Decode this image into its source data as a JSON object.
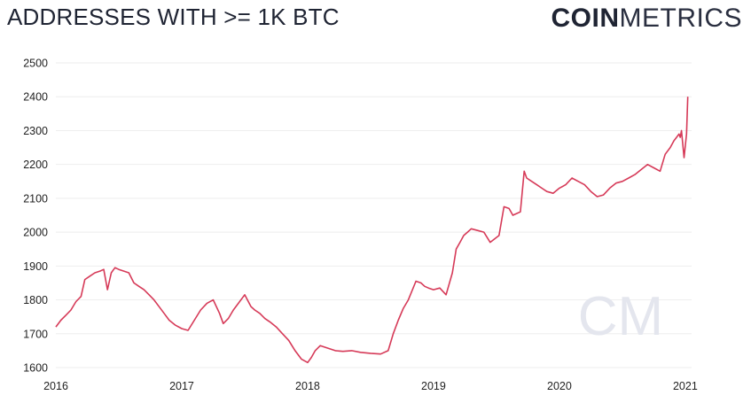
{
  "header": {
    "title": "ADDRESSES WITH >= 1K BTC",
    "logo_bold": "COIN",
    "logo_light": "METRICS"
  },
  "watermark": {
    "text": "CM"
  },
  "colors": {
    "line": "#d63a58",
    "grid": "#eeeeee",
    "watermark": "#e4e6ee"
  },
  "chart_data": {
    "type": "line",
    "title": "ADDRESSES WITH >= 1K BTC",
    "xlabel": "",
    "ylabel": "",
    "xlim": [
      2016.0,
      2021.05
    ],
    "ylim": [
      1600,
      2500
    ],
    "x_ticks": [
      "2016",
      "2017",
      "2018",
      "2019",
      "2020",
      "2021"
    ],
    "y_ticks": [
      1600,
      1700,
      1800,
      1900,
      2000,
      2100,
      2200,
      2300,
      2400,
      2500
    ],
    "grid": true,
    "legend": "none",
    "series": [
      {
        "x": [
          2016.0,
          2016.04,
          2016.08,
          2016.12,
          2016.16,
          2016.2,
          2016.23,
          2016.27,
          2016.31,
          2016.35,
          2016.38,
          2016.41,
          2016.44,
          2016.47,
          2016.5,
          2016.54,
          2016.58,
          2016.62,
          2016.66,
          2016.7,
          2016.74,
          2016.78,
          2016.82,
          2016.86,
          2016.9,
          2016.95,
          2017.0,
          2017.05,
          2017.1,
          2017.15,
          2017.2,
          2017.25,
          2017.3,
          2017.33,
          2017.37,
          2017.41,
          2017.45,
          2017.5,
          2017.55,
          2017.58,
          2017.62,
          2017.66,
          2017.7,
          2017.75,
          2017.8,
          2017.85,
          2017.9,
          2017.95,
          2018.0,
          2018.03,
          2018.06,
          2018.1,
          2018.14,
          2018.18,
          2018.22,
          2018.28,
          2018.35,
          2018.42,
          2018.5,
          2018.58,
          2018.64,
          2018.68,
          2018.72,
          2018.76,
          2018.8,
          2018.86,
          2018.9,
          2018.93,
          2018.96,
          2019.0,
          2019.05,
          2019.1,
          2019.15,
          2019.18,
          2019.21,
          2019.24,
          2019.27,
          2019.3,
          2019.35,
          2019.4,
          2019.45,
          2019.52,
          2019.56,
          2019.6,
          2019.63,
          2019.66,
          2019.69,
          2019.72,
          2019.74,
          2019.78,
          2019.82,
          2019.86,
          2019.9,
          2019.95,
          2020.0,
          2020.05,
          2020.1,
          2020.15,
          2020.2,
          2020.25,
          2020.3,
          2020.35,
          2020.4,
          2020.45,
          2020.5,
          2020.55,
          2020.6,
          2020.65,
          2020.7,
          2020.75,
          2020.8,
          2020.84,
          2020.88,
          2020.91,
          2020.93,
          2020.95,
          2020.96,
          2020.97,
          2020.99,
          2021.01,
          2021.02
        ],
        "values": [
          1720,
          1740,
          1755,
          1770,
          1795,
          1810,
          1860,
          1870,
          1880,
          1885,
          1890,
          1830,
          1880,
          1895,
          1890,
          1885,
          1880,
          1850,
          1840,
          1830,
          1815,
          1800,
          1780,
          1760,
          1740,
          1725,
          1715,
          1710,
          1740,
          1770,
          1790,
          1800,
          1760,
          1730,
          1745,
          1770,
          1790,
          1815,
          1780,
          1770,
          1760,
          1745,
          1735,
          1720,
          1700,
          1680,
          1650,
          1625,
          1615,
          1630,
          1650,
          1665,
          1660,
          1655,
          1650,
          1648,
          1650,
          1645,
          1642,
          1640,
          1650,
          1700,
          1740,
          1775,
          1800,
          1855,
          1850,
          1840,
          1835,
          1830,
          1835,
          1815,
          1880,
          1950,
          1970,
          1990,
          2000,
          2010,
          2005,
          2000,
          1970,
          1990,
          2075,
          2070,
          2050,
          2055,
          2060,
          2180,
          2160,
          2150,
          2140,
          2130,
          2120,
          2115,
          2130,
          2140,
          2160,
          2150,
          2140,
          2120,
          2105,
          2110,
          2130,
          2145,
          2150,
          2160,
          2170,
          2185,
          2200,
          2190,
          2180,
          2230,
          2250,
          2270,
          2280,
          2290,
          2280,
          2300,
          2220,
          2290,
          2400
        ]
      }
    ]
  }
}
